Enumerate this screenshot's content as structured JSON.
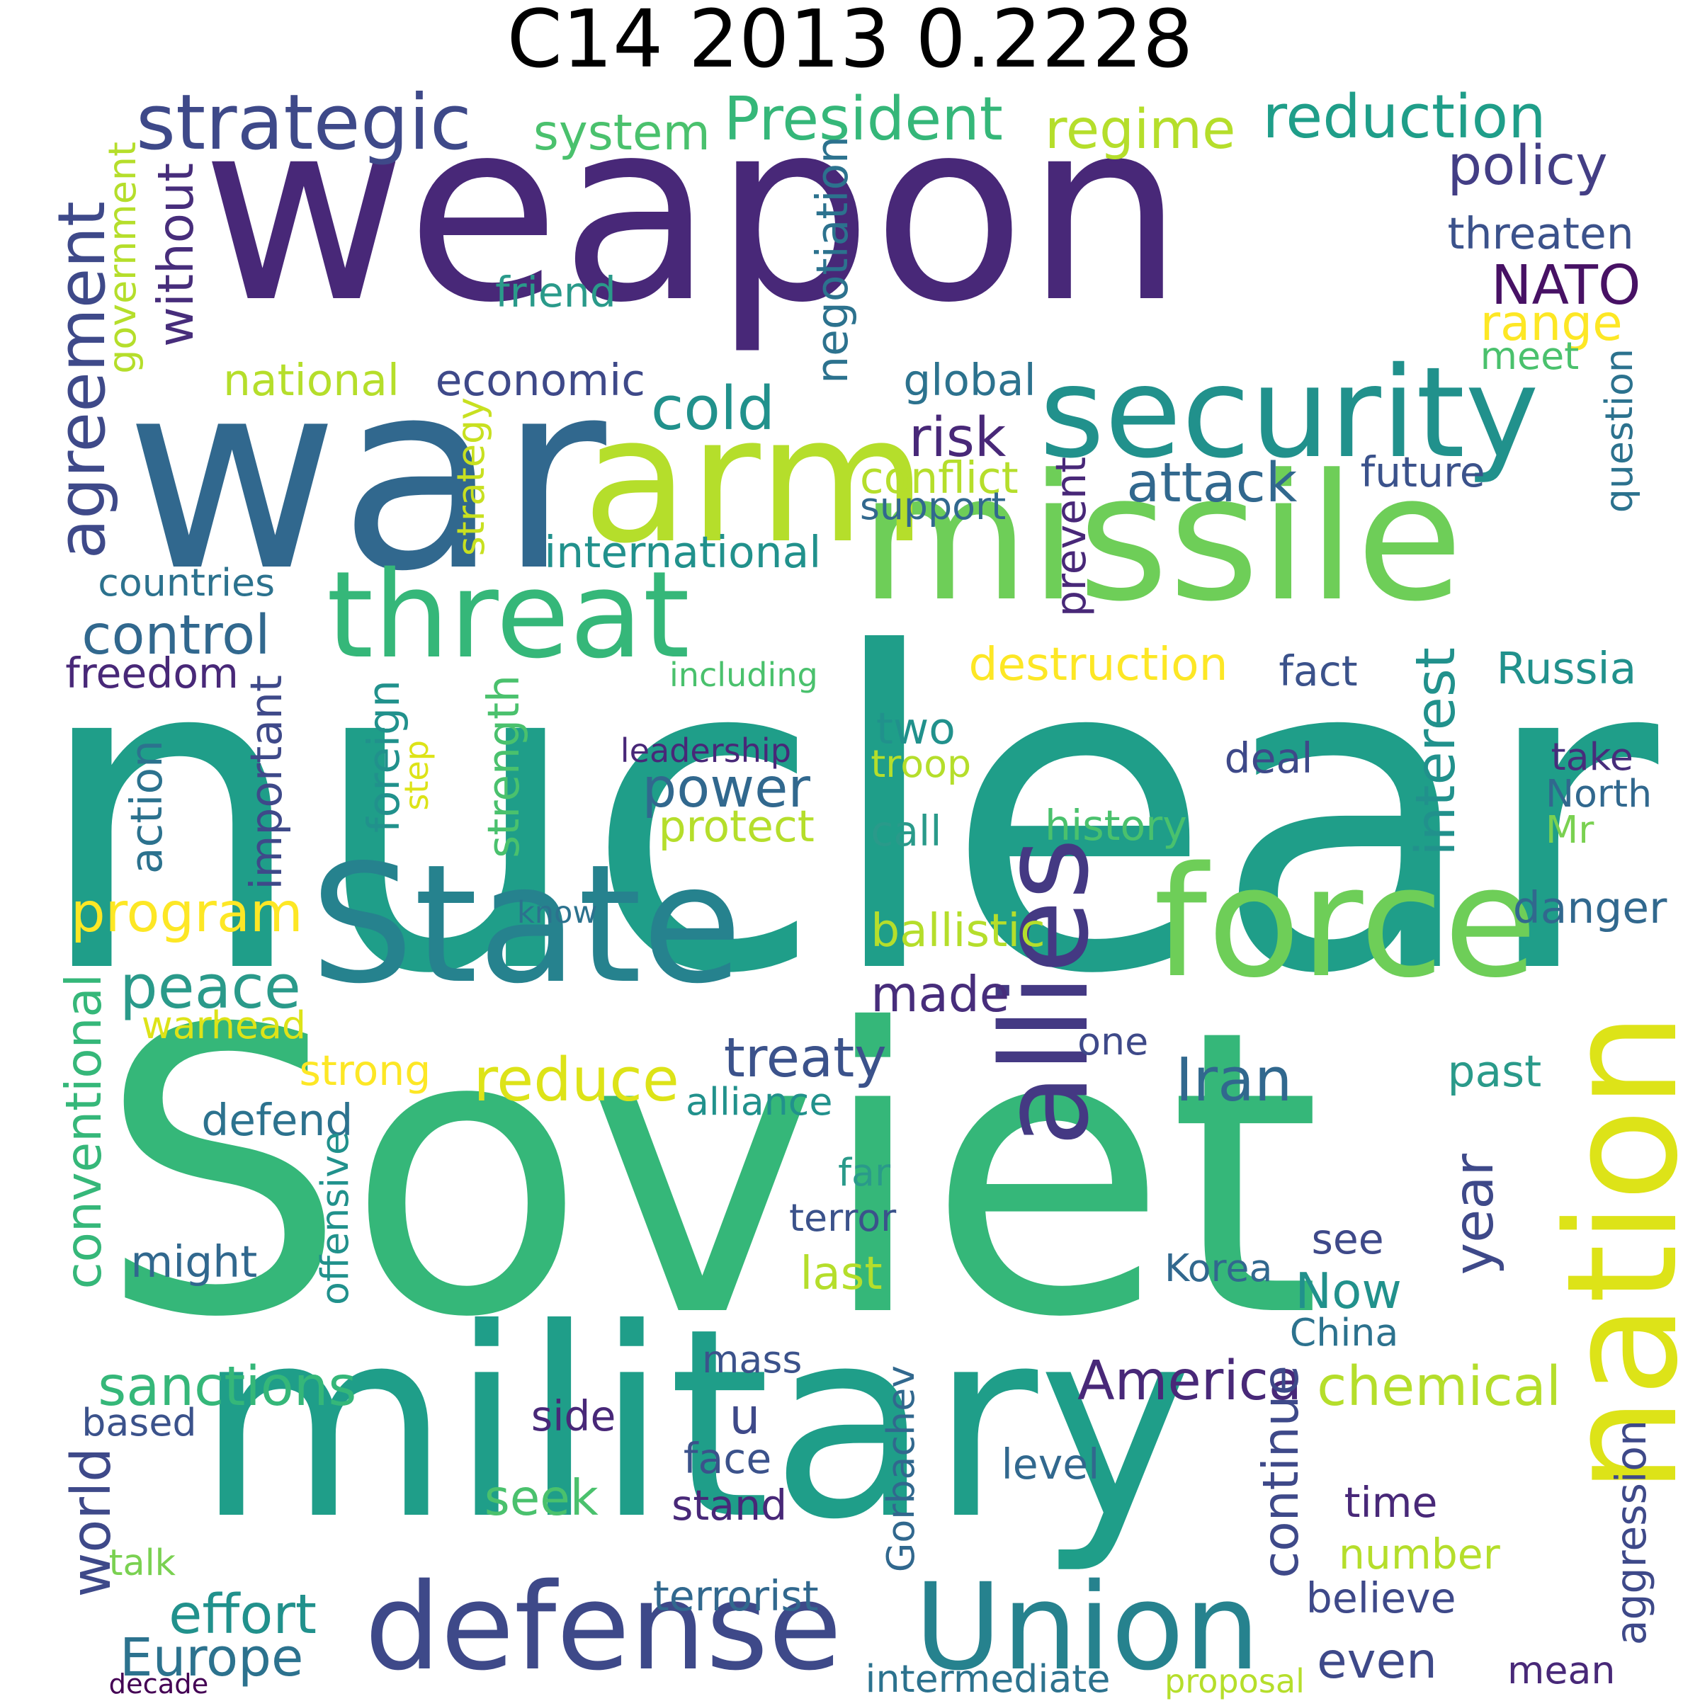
{
  "title": "C14 2013 0.2228",
  "palette": {
    "p1": "#482878",
    "p2": "#3e4989",
    "p3": "#31688e",
    "p4": "#26828e",
    "p5": "#1f9e89",
    "p6": "#35b779",
    "p7": "#6ece58",
    "p8": "#b5de2b",
    "p9": "#dde318",
    "p10": "#fde725"
  },
  "words": [
    {
      "text": "nuclear",
      "color": "#1f9e89"
    },
    {
      "text": "Soviet",
      "color": "#35b779"
    },
    {
      "text": "weapon",
      "color": "#482878"
    },
    {
      "text": "war",
      "color": "#31688e"
    },
    {
      "text": "military",
      "color": "#1f9e89"
    },
    {
      "text": "missile",
      "color": "#6ece58"
    },
    {
      "text": "State",
      "color": "#26828e"
    },
    {
      "text": "arm",
      "color": "#b5de2b"
    },
    {
      "text": "security",
      "color": "#21918c"
    },
    {
      "text": "force",
      "color": "#6ece58"
    },
    {
      "text": "threat",
      "color": "#35b779"
    },
    {
      "text": "defense",
      "color": "#3e4989"
    },
    {
      "text": "Union",
      "color": "#26828e"
    },
    {
      "text": "allies",
      "color": "#443983"
    },
    {
      "text": "nation",
      "color": "#dde318"
    },
    {
      "text": "strategic",
      "color": "#3e4989"
    },
    {
      "text": "President",
      "color": "#35b779"
    },
    {
      "text": "regime",
      "color": "#b5de2b"
    },
    {
      "text": "reduction",
      "color": "#1f9e89"
    },
    {
      "text": "system",
      "color": "#4ac16d"
    },
    {
      "text": "policy",
      "color": "#433e85"
    },
    {
      "text": "threaten",
      "color": "#3b528b"
    },
    {
      "text": "NATO",
      "color": "#471164"
    },
    {
      "text": "range",
      "color": "#fde725"
    },
    {
      "text": "meet",
      "color": "#4ac16d"
    },
    {
      "text": "friend",
      "color": "#2a9a8a"
    },
    {
      "text": "agreement",
      "color": "#3e4989"
    },
    {
      "text": "without",
      "color": "#472d7b"
    },
    {
      "text": "government",
      "color": "#b5de2b"
    },
    {
      "text": "negotiation",
      "color": "#2c728e"
    },
    {
      "text": "national",
      "color": "#b5de2b"
    },
    {
      "text": "economic",
      "color": "#3e4989"
    },
    {
      "text": "cold",
      "color": "#21918c"
    },
    {
      "text": "global",
      "color": "#2c728e"
    },
    {
      "text": "risk",
      "color": "#482878"
    },
    {
      "text": "attack",
      "color": "#31688e"
    },
    {
      "text": "conflict",
      "color": "#b5de2b"
    },
    {
      "text": "support",
      "color": "#31688e"
    },
    {
      "text": "future",
      "color": "#3b528b"
    },
    {
      "text": "question",
      "color": "#2c728e"
    },
    {
      "text": "prevent",
      "color": "#482878"
    },
    {
      "text": "strategy",
      "color": "#c8e020"
    },
    {
      "text": "international",
      "color": "#21918c"
    },
    {
      "text": "countries",
      "color": "#2c728e"
    },
    {
      "text": "control",
      "color": "#31688e"
    },
    {
      "text": "destruction",
      "color": "#fde725"
    },
    {
      "text": "fact",
      "color": "#3b528b"
    },
    {
      "text": "Russia",
      "color": "#21918c"
    },
    {
      "text": "freedom",
      "color": "#482878"
    },
    {
      "text": "including",
      "color": "#4ac16d"
    },
    {
      "text": "interest",
      "color": "#21918c"
    },
    {
      "text": "power",
      "color": "#31688e"
    },
    {
      "text": "two",
      "color": "#21918c"
    },
    {
      "text": "troop",
      "color": "#b5de2b"
    },
    {
      "text": "leadership",
      "color": "#482878"
    },
    {
      "text": "step",
      "color": "#dde318"
    },
    {
      "text": "deal",
      "color": "#3e4989"
    },
    {
      "text": "take",
      "color": "#472d7b"
    },
    {
      "text": "North",
      "color": "#31688e"
    },
    {
      "text": "Mr",
      "color": "#7ad151"
    },
    {
      "text": "important",
      "color": "#3e4989"
    },
    {
      "text": "foreign",
      "color": "#21918c"
    },
    {
      "text": "strength",
      "color": "#4ac16d"
    },
    {
      "text": "action",
      "color": "#2c728e"
    },
    {
      "text": "protect",
      "color": "#b5de2b"
    },
    {
      "text": "call",
      "color": "#2a9a8a"
    },
    {
      "text": "history",
      "color": "#4ac16d"
    },
    {
      "text": "program",
      "color": "#fde725"
    },
    {
      "text": "know",
      "color": "#2c728e"
    },
    {
      "text": "danger",
      "color": "#31688e"
    },
    {
      "text": "ballistic",
      "color": "#b5de2b"
    },
    {
      "text": "peace",
      "color": "#2a9a8a"
    },
    {
      "text": "made",
      "color": "#472d7b"
    },
    {
      "text": "warhead",
      "color": "#dde318"
    },
    {
      "text": "conventional",
      "color": "#35b779"
    },
    {
      "text": "treaty",
      "color": "#3b528b"
    },
    {
      "text": "one",
      "color": "#3e4989"
    },
    {
      "text": "strong",
      "color": "#fde725"
    },
    {
      "text": "reduce",
      "color": "#dde318"
    },
    {
      "text": "Iran",
      "color": "#31688e"
    },
    {
      "text": "past",
      "color": "#2a9a8a"
    },
    {
      "text": "alliance",
      "color": "#21918c"
    },
    {
      "text": "defend",
      "color": "#2c728e"
    },
    {
      "text": "offensive",
      "color": "#21918c"
    },
    {
      "text": "far",
      "color": "#2a9a8a"
    },
    {
      "text": "terror",
      "color": "#3b528b"
    },
    {
      "text": "year",
      "color": "#3e4989"
    },
    {
      "text": "see",
      "color": "#3e4989"
    },
    {
      "text": "might",
      "color": "#31688e"
    },
    {
      "text": "last",
      "color": "#b5de2b"
    },
    {
      "text": "Korea",
      "color": "#31688e"
    },
    {
      "text": "Now",
      "color": "#21918c"
    },
    {
      "text": "China",
      "color": "#2c728e"
    },
    {
      "text": "sanctions",
      "color": "#35b779"
    },
    {
      "text": "America",
      "color": "#482878"
    },
    {
      "text": "chemical",
      "color": "#b5de2b"
    },
    {
      "text": "mass",
      "color": "#3b528b"
    },
    {
      "text": "u",
      "color": "#3e4989"
    },
    {
      "text": "based",
      "color": "#3b528b"
    },
    {
      "text": "side",
      "color": "#482878"
    },
    {
      "text": "Gorbachev",
      "color": "#31688e"
    },
    {
      "text": "continue",
      "color": "#3e4989"
    },
    {
      "text": "world",
      "color": "#3e4989"
    },
    {
      "text": "face",
      "color": "#3b528b"
    },
    {
      "text": "level",
      "color": "#31688e"
    },
    {
      "text": "seek",
      "color": "#4ac16d"
    },
    {
      "text": "stand",
      "color": "#482878"
    },
    {
      "text": "time",
      "color": "#482878"
    },
    {
      "text": "aggression",
      "color": "#3e4989"
    },
    {
      "text": "talk",
      "color": "#7ad151"
    },
    {
      "text": "number",
      "color": "#b5de2b"
    },
    {
      "text": "effort",
      "color": "#21918c"
    },
    {
      "text": "terrorist",
      "color": "#31688e"
    },
    {
      "text": "believe",
      "color": "#3e4989"
    },
    {
      "text": "Europe",
      "color": "#2c728e"
    },
    {
      "text": "even",
      "color": "#3e4989"
    },
    {
      "text": "mean",
      "color": "#482878"
    },
    {
      "text": "intermediate",
      "color": "#2c728e"
    },
    {
      "text": "proposal",
      "color": "#b5de2b"
    },
    {
      "text": "decade",
      "color": "#440154"
    }
  ]
}
